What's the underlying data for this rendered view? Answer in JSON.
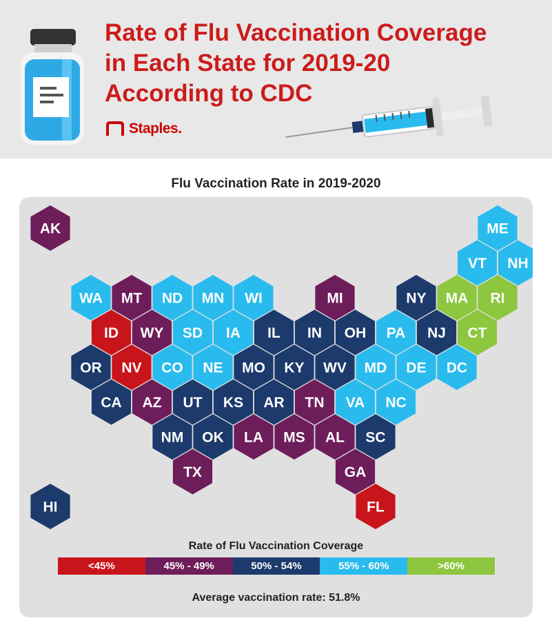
{
  "header": {
    "title_lines": [
      "Rate of Flu Vaccination Coverage",
      "in Each State for 2019-20",
      "According to CDC"
    ],
    "brand": "Staples",
    "brand_trademark": ".",
    "icons": [
      "vaccine-vial-icon",
      "syringe-icon",
      "staples-logo-icon"
    ]
  },
  "map": {
    "title": "Flu Vaccination Rate in 2019-2020",
    "colors": {
      "lt45": "#c8141b",
      "45to49": "#6e1d5b",
      "50to54": "#1c3a6b",
      "55to60": "#29bbee",
      "gt60": "#8dc63f"
    },
    "states": [
      {
        "abbr": "AK",
        "row": 0,
        "col": 0,
        "bin": "45to49"
      },
      {
        "abbr": "ME",
        "row": 0,
        "col": 11,
        "bin": "55to60"
      },
      {
        "abbr": "VT",
        "row": 1,
        "col": 10,
        "bin": "55to60"
      },
      {
        "abbr": "NH",
        "row": 1,
        "col": 11,
        "bin": "55to60"
      },
      {
        "abbr": "WA",
        "row": 2,
        "col": 1,
        "bin": "55to60"
      },
      {
        "abbr": "MT",
        "row": 2,
        "col": 2,
        "bin": "45to49"
      },
      {
        "abbr": "ND",
        "row": 2,
        "col": 3,
        "bin": "55to60"
      },
      {
        "abbr": "MN",
        "row": 2,
        "col": 4,
        "bin": "55to60"
      },
      {
        "abbr": "WI",
        "row": 2,
        "col": 5,
        "bin": "55to60"
      },
      {
        "abbr": "MI",
        "row": 2,
        "col": 7,
        "bin": "45to49"
      },
      {
        "abbr": "NY",
        "row": 2,
        "col": 9,
        "bin": "50to54"
      },
      {
        "abbr": "MA",
        "row": 2,
        "col": 10,
        "bin": "gt60"
      },
      {
        "abbr": "RI",
        "row": 2,
        "col": 11,
        "bin": "gt60"
      },
      {
        "abbr": "ID",
        "row": 3,
        "col": 1,
        "bin": "lt45"
      },
      {
        "abbr": "WY",
        "row": 3,
        "col": 2,
        "bin": "45to49"
      },
      {
        "abbr": "SD",
        "row": 3,
        "col": 3,
        "bin": "55to60"
      },
      {
        "abbr": "IA",
        "row": 3,
        "col": 4,
        "bin": "55to60"
      },
      {
        "abbr": "IL",
        "row": 3,
        "col": 5,
        "bin": "50to54"
      },
      {
        "abbr": "IN",
        "row": 3,
        "col": 6,
        "bin": "50to54"
      },
      {
        "abbr": "OH",
        "row": 3,
        "col": 7,
        "bin": "50to54"
      },
      {
        "abbr": "PA",
        "row": 3,
        "col": 8,
        "bin": "55to60"
      },
      {
        "abbr": "NJ",
        "row": 3,
        "col": 9,
        "bin": "50to54"
      },
      {
        "abbr": "CT",
        "row": 3,
        "col": 10,
        "bin": "gt60"
      },
      {
        "abbr": "OR",
        "row": 4,
        "col": 1,
        "bin": "50to54"
      },
      {
        "abbr": "NV",
        "row": 4,
        "col": 2,
        "bin": "lt45"
      },
      {
        "abbr": "CO",
        "row": 4,
        "col": 3,
        "bin": "55to60"
      },
      {
        "abbr": "NE",
        "row": 4,
        "col": 4,
        "bin": "55to60"
      },
      {
        "abbr": "MO",
        "row": 4,
        "col": 5,
        "bin": "50to54"
      },
      {
        "abbr": "KY",
        "row": 4,
        "col": 6,
        "bin": "50to54"
      },
      {
        "abbr": "WV",
        "row": 4,
        "col": 7,
        "bin": "50to54"
      },
      {
        "abbr": "MD",
        "row": 4,
        "col": 8,
        "bin": "55to60"
      },
      {
        "abbr": "DE",
        "row": 4,
        "col": 9,
        "bin": "55to60"
      },
      {
        "abbr": "DC",
        "row": 4,
        "col": 10,
        "bin": "55to60"
      },
      {
        "abbr": "CA",
        "row": 5,
        "col": 1,
        "bin": "50to54"
      },
      {
        "abbr": "AZ",
        "row": 5,
        "col": 2,
        "bin": "45to49"
      },
      {
        "abbr": "UT",
        "row": 5,
        "col": 3,
        "bin": "50to54"
      },
      {
        "abbr": "KS",
        "row": 5,
        "col": 4,
        "bin": "50to54"
      },
      {
        "abbr": "AR",
        "row": 5,
        "col": 5,
        "bin": "50to54"
      },
      {
        "abbr": "TN",
        "row": 5,
        "col": 6,
        "bin": "45to49"
      },
      {
        "abbr": "VA",
        "row": 5,
        "col": 7,
        "bin": "55to60"
      },
      {
        "abbr": "NC",
        "row": 5,
        "col": 8,
        "bin": "55to60"
      },
      {
        "abbr": "NM",
        "row": 6,
        "col": 3,
        "bin": "50to54"
      },
      {
        "abbr": "OK",
        "row": 6,
        "col": 4,
        "bin": "50to54"
      },
      {
        "abbr": "LA",
        "row": 6,
        "col": 5,
        "bin": "45to49"
      },
      {
        "abbr": "MS",
        "row": 6,
        "col": 6,
        "bin": "45to49"
      },
      {
        "abbr": "AL",
        "row": 6,
        "col": 7,
        "bin": "45to49"
      },
      {
        "abbr": "SC",
        "row": 6,
        "col": 8,
        "bin": "50to54"
      },
      {
        "abbr": "TX",
        "row": 7,
        "col": 3,
        "bin": "45to49"
      },
      {
        "abbr": "GA",
        "row": 7,
        "col": 7,
        "bin": "45to49"
      },
      {
        "abbr": "HI",
        "row": 8,
        "col": 0,
        "bin": "50to54"
      },
      {
        "abbr": "FL",
        "row": 8,
        "col": 8,
        "bin": "lt45"
      }
    ]
  },
  "legend": {
    "title": "Rate of Flu Vaccination Coverage",
    "items": [
      {
        "bin": "lt45",
        "label": "<45%"
      },
      {
        "bin": "45to49",
        "label": "45% - 49%"
      },
      {
        "bin": "50to54",
        "label": "50% - 54%"
      },
      {
        "bin": "55to60",
        "label": "55% - 60%"
      },
      {
        "bin": "gt60",
        "label": ">60%"
      }
    ]
  },
  "footer": {
    "average": "Average vaccination rate: 51.8%"
  }
}
